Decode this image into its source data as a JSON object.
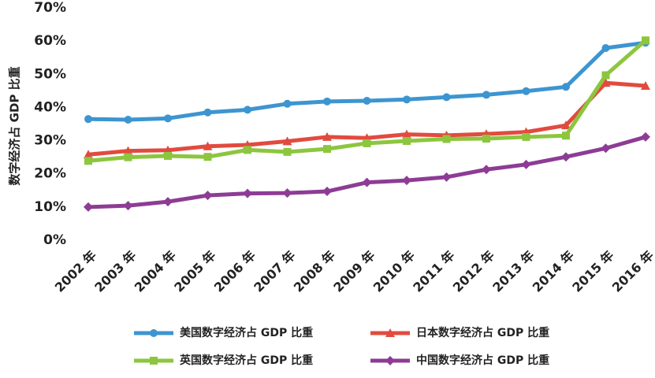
{
  "chart_data": {
    "type": "line",
    "title": "",
    "xlabel": "",
    "ylabel": "数字经济占 GDP 比重",
    "ylim": [
      0,
      70
    ],
    "yticks": [
      "0%",
      "10%",
      "20%",
      "30%",
      "40%",
      "50%",
      "60%",
      "70%"
    ],
    "grid": false,
    "legend_position": "bottom",
    "categories": [
      "2002 年",
      "2003 年",
      "2004 年",
      "2005 年",
      "2006 年",
      "2007 年",
      "2008 年",
      "2009 年",
      "2010 年",
      "2011 年",
      "2012 年",
      "2013 年",
      "2014 年",
      "2015 年",
      "2016 年"
    ],
    "series": [
      {
        "name": "美国数字经济占 GDP 比重",
        "color": "#3d95d0",
        "marker": "circle",
        "values": [
          36.5,
          36.3,
          36.7,
          38.5,
          39.3,
          41.1,
          41.8,
          42.0,
          42.4,
          43.1,
          43.8,
          44.9,
          46.2,
          57.9,
          59.5
        ]
      },
      {
        "name": "日本数字经济占 GDP 比重",
        "color": "#e14b3f",
        "marker": "triangle",
        "values": [
          25.8,
          26.9,
          27.1,
          28.3,
          28.7,
          29.8,
          31.1,
          30.8,
          31.9,
          31.6,
          32.0,
          32.6,
          34.6,
          47.4,
          46.5
        ]
      },
      {
        "name": "英国数字经济占 GDP 比重",
        "color": "#8cc63e",
        "marker": "square",
        "values": [
          23.9,
          25.0,
          25.4,
          25.1,
          27.2,
          26.6,
          27.5,
          29.2,
          29.9,
          30.5,
          30.6,
          31.1,
          31.5,
          49.7,
          60.2
        ]
      },
      {
        "name": "中国数字经济占 GDP 比重",
        "color": "#8d3c95",
        "marker": "diamond",
        "values": [
          10.0,
          10.4,
          11.6,
          13.5,
          14.1,
          14.2,
          14.7,
          17.4,
          18.0,
          19.0,
          21.3,
          22.8,
          25.1,
          27.7,
          31.1
        ]
      }
    ]
  }
}
